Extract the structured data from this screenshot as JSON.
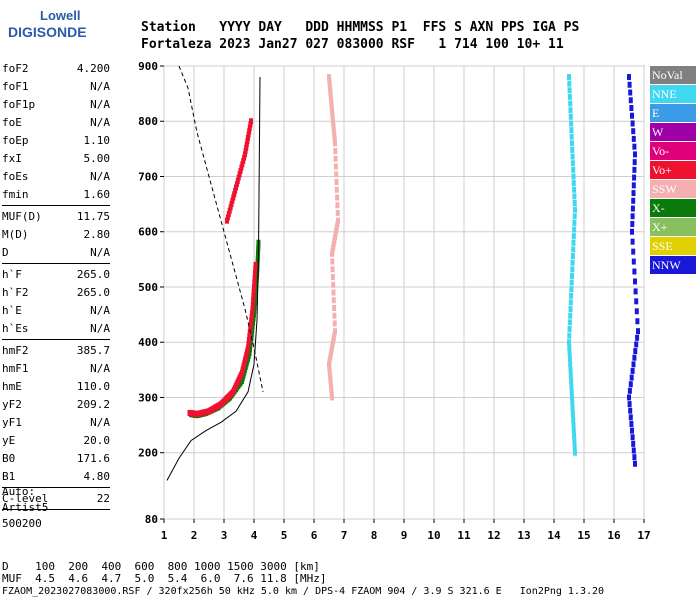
{
  "logo": {
    "top": "Lowell",
    "bottom": "DIGISONDE"
  },
  "header": {
    "line1": "Station   YYYY DAY   DDD HHMMSS P1  FFS S AXN PPS IGA PS",
    "line2": "Fortaleza 2023 Jan27 027 083000 RSF   1 714 100 10+ 11"
  },
  "params": [
    [
      {
        "k": "foF2",
        "v": "4.200"
      },
      {
        "k": "foF1",
        "v": "N/A"
      },
      {
        "k": "foF1p",
        "v": "N/A"
      },
      {
        "k": "foE",
        "v": "N/A"
      },
      {
        "k": "foEp",
        "v": "1.10"
      },
      {
        "k": "fxI",
        "v": "5.00"
      },
      {
        "k": "foEs",
        "v": "N/A"
      },
      {
        "k": "fmin",
        "v": "1.60"
      }
    ],
    [
      {
        "k": "MUF(D)",
        "v": "11.75"
      },
      {
        "k": "M(D)",
        "v": "2.80"
      },
      {
        "k": "D",
        "v": "N/A"
      }
    ],
    [
      {
        "k": "h`F",
        "v": "265.0"
      },
      {
        "k": "h`F2",
        "v": "265.0"
      },
      {
        "k": "h`E",
        "v": "N/A"
      },
      {
        "k": "h`Es",
        "v": "N/A"
      }
    ],
    [
      {
        "k": "hmF2",
        "v": "385.7"
      },
      {
        "k": "hmF1",
        "v": "N/A"
      },
      {
        "k": "hmE",
        "v": "110.0"
      },
      {
        "k": "yF2",
        "v": "209.2"
      },
      {
        "k": "yF1",
        "v": "N/A"
      },
      {
        "k": "yE",
        "v": "20.0"
      },
      {
        "k": "B0",
        "v": "171.6"
      },
      {
        "k": "B1",
        "v": "4.80"
      }
    ],
    [
      {
        "k": "C-level",
        "v": "22"
      }
    ]
  ],
  "auto": {
    "line1": "Auto:",
    "line2": "Artist5",
    "line3": "500200"
  },
  "legend": [
    {
      "label": "NoVal",
      "color": "#808080"
    },
    {
      "label": "NNE",
      "color": "#40d8f0"
    },
    {
      "label": "E",
      "color": "#3b9be6"
    },
    {
      "label": "W",
      "color": "#a000a8"
    },
    {
      "label": "Vo-",
      "color": "#e0007a"
    },
    {
      "label": "Vo+",
      "color": "#f01030"
    },
    {
      "label": "SSW",
      "color": "#f4b0b0"
    },
    {
      "label": "X-",
      "color": "#0a7a0a"
    },
    {
      "label": "X+",
      "color": "#88c060"
    },
    {
      "label": "SSE",
      "color": "#e0d000"
    },
    {
      "label": "NNW",
      "color": "#1a18d8"
    }
  ],
  "footer": {
    "line1": "D    100  200  400  600  800 1000 1500 3000 [km]",
    "line2": "MUF  4.5  4.6  4.7  5.0  5.4  6.0  7.6 11.8 [MHz]",
    "line3": "FZAOM_2023027083000.RSF / 320fx256h 50 kHz 5.0 km / DPS-4 FZAOM 904 / 3.9 S 321.6 E   Ion2Png 1.3.20"
  },
  "chart_data": {
    "type": "scatter",
    "xlim": [
      1,
      17
    ],
    "ylim": [
      80,
      900
    ],
    "x_ticks": [
      1,
      2,
      3,
      4,
      5,
      6,
      7,
      8,
      9,
      10,
      11,
      12,
      13,
      14,
      15,
      16,
      17
    ],
    "y_ticks": [
      80,
      200,
      300,
      400,
      500,
      600,
      700,
      800,
      900
    ],
    "grid": true,
    "traces": [
      {
        "name": "X-",
        "color": "#0a7a0a",
        "x": [
          1.9,
          2.1,
          2.4,
          2.8,
          3.2,
          3.6,
          3.85,
          4.0,
          4.1,
          4.15
        ],
        "y": [
          270,
          268,
          272,
          282,
          300,
          330,
          380,
          450,
          520,
          580
        ]
      },
      {
        "name": "Vo+",
        "color": "#f01030",
        "x": [
          1.85,
          2.1,
          2.5,
          2.9,
          3.3,
          3.6,
          3.8,
          3.95,
          4.05
        ],
        "y": [
          272,
          270,
          275,
          288,
          310,
          345,
          390,
          460,
          540
        ]
      },
      {
        "name": "Vo+",
        "color": "#f01030",
        "x": [
          3.1,
          3.4,
          3.7,
          3.9
        ],
        "y": [
          620,
          680,
          740,
          800
        ]
      },
      {
        "name": "SSW",
        "color": "#f4b0b0",
        "x": [
          6.5,
          6.6,
          6.7,
          6.8,
          6.6,
          6.7,
          6.5,
          6.6
        ],
        "y": [
          880,
          820,
          760,
          620,
          560,
          420,
          360,
          300
        ]
      },
      {
        "name": "NNE",
        "color": "#40d8f0",
        "x": [
          14.5,
          14.6,
          14.7,
          14.6,
          14.5,
          14.6,
          14.7
        ],
        "y": [
          880,
          760,
          640,
          520,
          400,
          300,
          200
        ]
      },
      {
        "name": "NNW",
        "color": "#1a18d8",
        "x": [
          16.5,
          16.7,
          16.6,
          16.8,
          16.5,
          16.7
        ],
        "y": [
          880,
          740,
          600,
          420,
          300,
          180
        ]
      }
    ],
    "model_profile": {
      "x": [
        1.1,
        1.5,
        1.9,
        2.4,
        2.9,
        3.4,
        3.8,
        4.0,
        4.1,
        4.15,
        4.2
      ],
      "y": [
        150,
        190,
        222,
        240,
        255,
        275,
        310,
        360,
        440,
        560,
        880
      ]
    },
    "model_x": {
      "x": [
        1.5,
        1.8,
        2.1,
        2.5,
        2.9,
        3.3,
        3.7,
        4.0,
        4.3
      ],
      "y": [
        900,
        860,
        780,
        700,
        620,
        540,
        460,
        390,
        310
      ]
    }
  }
}
